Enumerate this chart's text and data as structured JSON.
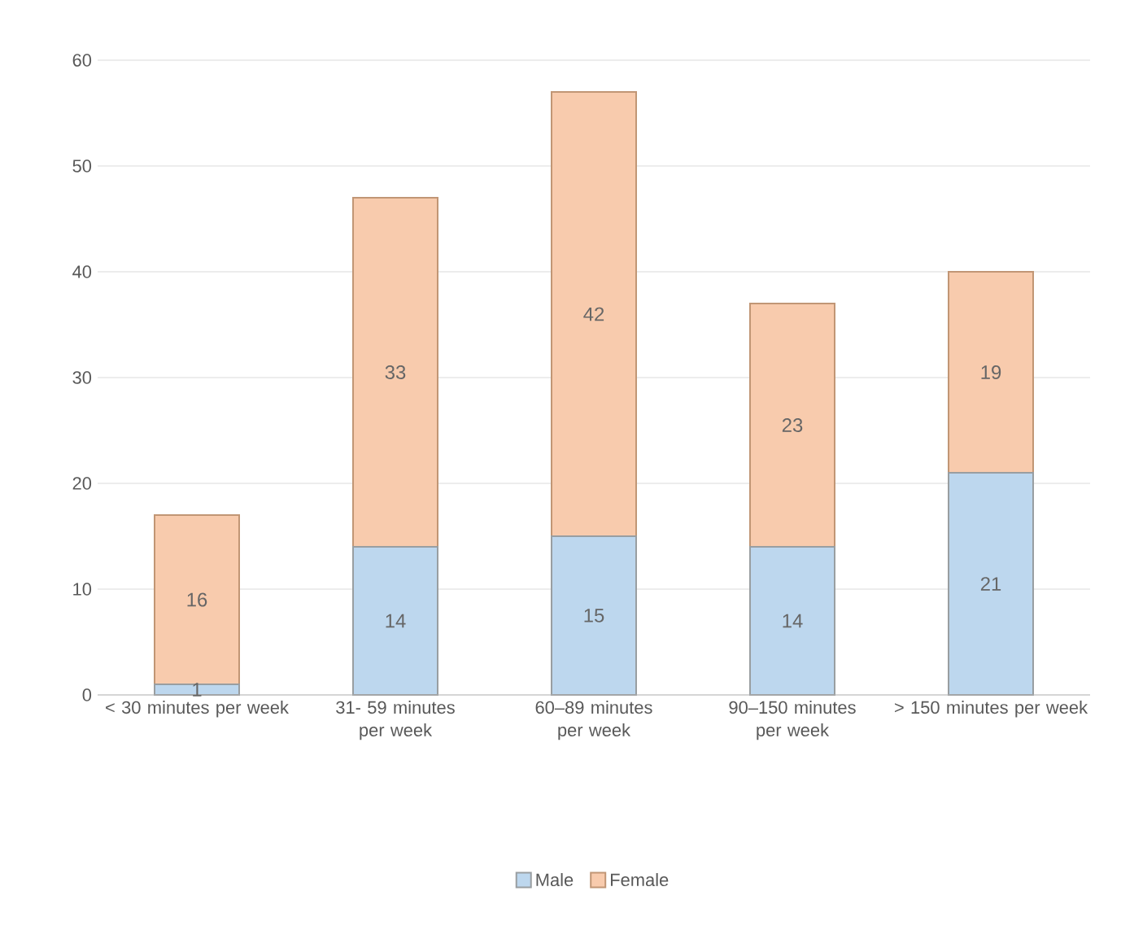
{
  "chart_data": {
    "type": "bar",
    "stacked": true,
    "categories": [
      "< 30 minutes per week",
      "31- 59 minutes per week",
      "60–89 minutes per week",
      "90–150 minutes per week",
      "> 150 minutes per week"
    ],
    "series": [
      {
        "name": "Male",
        "color": "#bdd7ee",
        "values": [
          1,
          14,
          15,
          14,
          21
        ]
      },
      {
        "name": "Female",
        "color": "#f8cbad",
        "values": [
          16,
          33,
          42,
          23,
          19
        ]
      }
    ],
    "ylim": [
      0,
      60
    ],
    "yticks": [
      0,
      10,
      20,
      30,
      40,
      50,
      60
    ],
    "grid": "y",
    "legend": "bottom",
    "data_labels": true
  }
}
